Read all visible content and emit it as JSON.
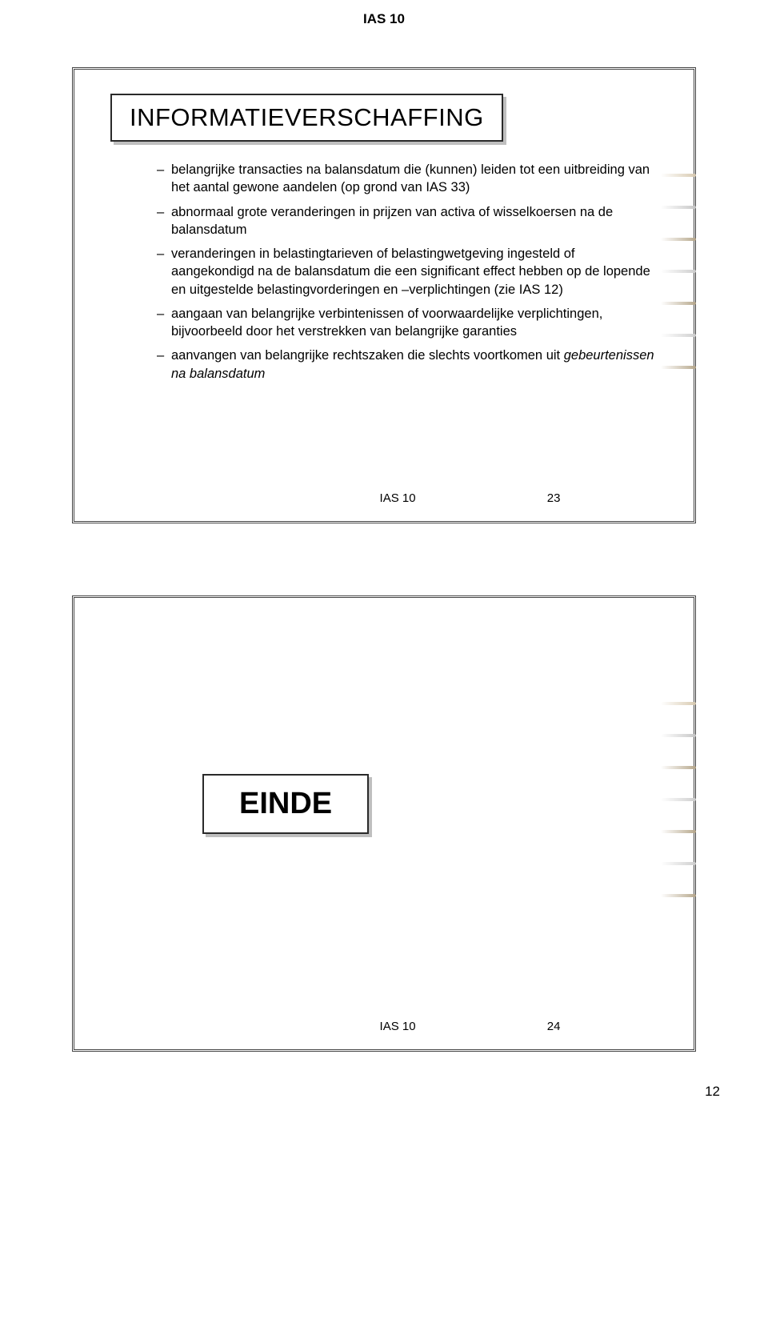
{
  "header": {
    "label": "IAS 10"
  },
  "slide1": {
    "title": "INFORMATIEVERSCHAFFING",
    "bullets": [
      {
        "text": "belangrijke transacties na balansdatum die (kunnen) leiden tot een uitbreiding van het aantal gewone aandelen (op grond van IAS 33)"
      },
      {
        "text": "abnormaal grote veranderingen in prijzen van activa of wisselkoersen na de balansdatum"
      },
      {
        "text": "veranderingen in belastingtarieven of belastingwetgeving ingesteld of aangekondigd na de balansdatum die een significant effect hebben op de lopende en uitgestelde belastingvorderingen en –verplichtingen (zie IAS 12)"
      },
      {
        "text": "aangaan van belangrijke verbintenissen of voorwaardelijke verplichtingen, bijvoorbeeld door het verstrekken van belangrijke garanties"
      },
      {
        "text": "aanvangen van belangrijke rechtszaken die slechts voortkomen uit ",
        "italic_suffix": "gebeurtenissen na balansdatum"
      }
    ],
    "footer_label": "IAS 10",
    "footer_pagenum": "23",
    "streak_colors": [
      "#d9cbb2",
      "#c8c8c8",
      "#b8a98e",
      "#cfcfcf",
      "#b8a98e",
      "#d0d0d0",
      "#b8a98e"
    ]
  },
  "slide2": {
    "title": "EINDE",
    "footer_label": "IAS 10",
    "footer_pagenum": "24",
    "streak_colors": [
      "#d9cbb2",
      "#c8c8c8",
      "#b8a98e",
      "#cfcfcf",
      "#b8a98e",
      "#d0d0d0",
      "#b8a98e"
    ]
  },
  "page_number": "12"
}
